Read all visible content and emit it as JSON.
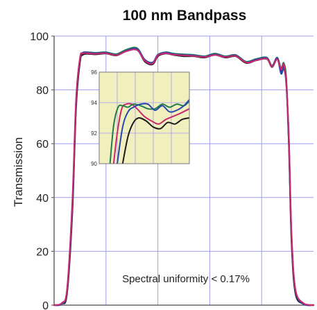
{
  "chart_data": {
    "type": "line",
    "title": "100 nm Bandpass",
    "xlabel": "",
    "ylabel": "Transmission",
    "ylim": [
      0,
      100
    ],
    "yticks": [
      0,
      20,
      40,
      60,
      80,
      100
    ],
    "xlim": [
      0,
      10
    ],
    "grid": true,
    "annotation": "Spectral uniformity < 0.17%",
    "colors": {
      "grid": "#9e9ef0",
      "axis": "#666666",
      "inset_bg": "#f2efbf",
      "green": "#1f7d4a",
      "black": "#1a1a1a",
      "blue": "#2548b0",
      "magenta": "#c8286e"
    },
    "series": [
      {
        "color": "green",
        "x": [
          0,
          0.3,
          0.5,
          0.7,
          0.85,
          1.0,
          1.1,
          1.3,
          1.6,
          2.0,
          2.4,
          2.8,
          3.2,
          3.5,
          3.8,
          4.0,
          4.3,
          4.6,
          5.0,
          5.4,
          5.8,
          6.2,
          6.6,
          7.0,
          7.4,
          7.8,
          8.2,
          8.4,
          8.6,
          8.75,
          8.85,
          8.95,
          9.05,
          9.15,
          9.3,
          9.6,
          10
        ],
        "y": [
          0,
          0.5,
          5,
          35,
          75,
          91,
          93.7,
          94,
          93.8,
          94,
          93.3,
          95,
          95.5,
          91,
          90,
          93,
          94,
          93.5,
          93.2,
          93,
          92.5,
          93.5,
          92.5,
          93,
          90.5,
          91.5,
          92,
          89,
          92,
          88,
          90,
          84,
          60,
          25,
          5,
          0.5,
          0
        ]
      },
      {
        "color": "black",
        "x": [
          0,
          0.3,
          0.5,
          0.7,
          0.85,
          1.0,
          1.1,
          1.3,
          1.6,
          2.0,
          2.4,
          2.8,
          3.2,
          3.5,
          3.8,
          4.0,
          4.3,
          4.6,
          5.0,
          5.4,
          5.8,
          6.2,
          6.6,
          7.0,
          7.4,
          7.8,
          8.2,
          8.4,
          8.6,
          8.75,
          8.85,
          8.95,
          9.05,
          9.15,
          9.3,
          9.6,
          10
        ],
        "y": [
          0,
          0.5,
          4.5,
          34,
          74,
          90.5,
          93,
          93.4,
          93.2,
          93.5,
          92.8,
          94.5,
          95,
          90.5,
          89.5,
          92.5,
          93.5,
          93,
          92.5,
          92.5,
          92,
          93,
          92,
          92.5,
          90,
          91,
          91.5,
          88.5,
          91.5,
          87,
          89,
          83,
          59,
          24,
          4.5,
          0.5,
          0
        ]
      },
      {
        "color": "blue",
        "x": [
          0,
          0.3,
          0.5,
          0.7,
          0.85,
          1.0,
          1.1,
          1.3,
          1.6,
          2.0,
          2.4,
          2.8,
          3.2,
          3.5,
          3.8,
          4.0,
          4.3,
          4.6,
          5.0,
          5.4,
          5.8,
          6.2,
          6.6,
          7.0,
          7.4,
          7.8,
          8.2,
          8.4,
          8.6,
          8.75,
          8.85,
          8.95,
          9.05,
          9.15,
          9.3,
          9.6,
          10
        ],
        "y": [
          0,
          0.5,
          5.5,
          36,
          76,
          91.5,
          93.8,
          93.9,
          93.6,
          93.8,
          93,
          94.6,
          95.2,
          91.2,
          90.2,
          93.1,
          93.9,
          93.3,
          93,
          92.8,
          92.3,
          93.2,
          92.3,
          92.8,
          90.3,
          91.3,
          91.8,
          88.8,
          91.8,
          86,
          88,
          82,
          61,
          26,
          5.5,
          0.5,
          0
        ]
      },
      {
        "color": "magenta",
        "x": [
          0,
          0.3,
          0.5,
          0.7,
          0.85,
          1.0,
          1.1,
          1.3,
          1.6,
          2.0,
          2.4,
          2.8,
          3.2,
          3.5,
          3.8,
          4.0,
          4.3,
          4.6,
          5.0,
          5.4,
          5.8,
          6.2,
          6.6,
          7.0,
          7.4,
          7.8,
          8.2,
          8.4,
          8.6,
          8.75,
          8.85,
          8.95,
          9.05,
          9.15,
          9.3,
          9.6,
          10
        ],
        "y": [
          0,
          0.8,
          6,
          38,
          77,
          92,
          93.5,
          93.6,
          93.4,
          93.6,
          92.9,
          94.4,
          94.8,
          90.8,
          89.8,
          92.8,
          93.6,
          93.1,
          92.8,
          92.6,
          92.2,
          93,
          92.2,
          92.6,
          90.2,
          91,
          91.6,
          88.6,
          91.4,
          87.5,
          89.5,
          82.5,
          62,
          27,
          6,
          0.8,
          0
        ]
      }
    ],
    "inset": {
      "ylim": [
        90,
        96
      ],
      "yticks": [
        90,
        92,
        94,
        96
      ],
      "xlim": [
        0,
        1
      ],
      "series": [
        {
          "color": "magenta",
          "x": [
            0.16,
            0.2,
            0.25,
            0.3,
            0.36,
            0.42,
            0.5,
            0.58,
            0.66,
            0.74,
            0.82,
            0.9,
            1.0
          ],
          "y": [
            90,
            92,
            93.6,
            93.9,
            93.9,
            93.6,
            93.1,
            92.8,
            92.6,
            92.9,
            93.1,
            93.3,
            93.6
          ]
        },
        {
          "color": "green",
          "x": [
            0.12,
            0.16,
            0.21,
            0.26,
            0.32,
            0.38,
            0.46,
            0.54,
            0.62,
            0.7,
            0.78,
            0.86,
            0.94,
            1.0
          ],
          "y": [
            90,
            92.5,
            93.7,
            93.8,
            93.7,
            93.9,
            93.8,
            93.6,
            93.6,
            93.9,
            93.7,
            93.9,
            93.8,
            94.1
          ]
        },
        {
          "color": "blue",
          "x": [
            0.2,
            0.26,
            0.32,
            0.38,
            0.46,
            0.54,
            0.62,
            0.7,
            0.78,
            0.86,
            0.94,
            1.0
          ],
          "y": [
            90,
            92.4,
            93.4,
            93.7,
            93.9,
            93.9,
            93.5,
            93.8,
            93.4,
            93.5,
            93.8,
            94.2
          ]
        },
        {
          "color": "black",
          "x": [
            0.26,
            0.32,
            0.38,
            0.44,
            0.52,
            0.6,
            0.68,
            0.76,
            0.84,
            0.92,
            1.0
          ],
          "y": [
            90,
            91.8,
            92.7,
            93.0,
            92.8,
            92.4,
            92.3,
            92.7,
            92.6,
            92.9,
            93.0
          ]
        }
      ]
    }
  }
}
